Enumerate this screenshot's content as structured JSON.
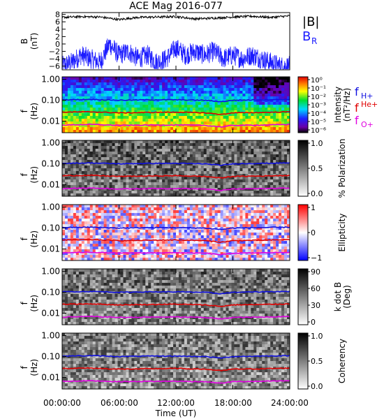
{
  "title": "ACE Mag 2016-077",
  "colors": {
    "bmag": "#000000",
    "br": "#1a1aff",
    "fH": "#1010e0",
    "fHe": "#e00000",
    "fO": "#e000e0"
  },
  "chart_data": {
    "type": "multi-panel spectrogram",
    "x_axis": {
      "label": "Time (UT)",
      "range": [
        "00:00:00",
        "24:00:00"
      ],
      "tick_labels": [
        "00:00:00",
        "06:00:00",
        "12:00:00",
        "18:00:00",
        "24:00:00"
      ],
      "tick_hours": [
        0,
        6,
        12,
        18,
        24
      ]
    },
    "panels": [
      {
        "id": "mag",
        "type": "line",
        "ylabel": "B",
        "yunit": "(nT)",
        "y_tick_labels": [
          "8",
          "6",
          "4",
          "2",
          "0",
          "−2",
          "−4",
          "−6"
        ],
        "ylim": [
          -7,
          8.5
        ],
        "legend": [
          "|B|",
          "B",
          "R"
        ],
        "series": [
          {
            "name": "|B|",
            "hours": [
              0,
              2,
              4,
              6,
              8,
              10,
              12,
              14,
              16,
              18,
              20,
              22,
              24
            ],
            "values": [
              7.2,
              7.4,
              7.3,
              6.6,
              7.2,
              7.3,
              7.4,
              6.8,
              7.0,
              7.3,
              7.5,
              7.2,
              7.6
            ]
          },
          {
            "name": "B_R",
            "hours": [
              0,
              1,
              2,
              3,
              4,
              5,
              6,
              7,
              8,
              9,
              10,
              11,
              12,
              13,
              14,
              15,
              16,
              17,
              18,
              19,
              20,
              21,
              22,
              23,
              24
            ],
            "values": [
              -6,
              -5,
              -3,
              -4,
              -5,
              0,
              -3,
              -2,
              -4,
              -3,
              -5,
              -4,
              -1,
              -3,
              -2,
              -3,
              -2,
              -4,
              -3,
              -4,
              -3,
              -4,
              -5,
              -6,
              -6
            ]
          }
        ]
      },
      {
        "id": "intensity",
        "type": "heatmap",
        "ylabel": "f",
        "yunit": "(Hz)",
        "y_tick_labels": [
          "1.00",
          "0.10",
          "0.01"
        ],
        "colorbar": {
          "label": "Intensity",
          "unit": "(nT²/Hz)",
          "tick_labels": [
            "10⁰",
            "10⁻¹",
            "10⁻²",
            "10⁻³",
            "10⁻⁴",
            "10⁻⁵",
            "10⁻⁶"
          ]
        },
        "legend": [
          {
            "text": "f",
            "sub": "H+",
            "color": "fH"
          },
          {
            "text": "f",
            "sup": "He+",
            "color": "fHe"
          },
          {
            "text": "f",
            "sub": "O+",
            "color": "fO"
          }
        ]
      },
      {
        "id": "polarization",
        "type": "heatmap",
        "ylabel": "f",
        "yunit": "(Hz)",
        "y_tick_labels": [
          "1.00",
          "0.10",
          "0.01"
        ],
        "colorbar": {
          "label": "% Polarization",
          "unit": "",
          "tick_labels": [
            "1.0",
            "0.5",
            "0.0"
          ]
        }
      },
      {
        "id": "ellipticity",
        "type": "heatmap",
        "ylabel": "f",
        "yunit": "(Hz)",
        "y_tick_labels": [
          "1.00",
          "0.10",
          "0.01"
        ],
        "colorbar": {
          "label": "Ellipticity",
          "unit": "",
          "tick_labels": [
            "1",
            "0",
            "−1"
          ]
        }
      },
      {
        "id": "kdotb",
        "type": "heatmap",
        "ylabel": "f",
        "yunit": "(Hz)",
        "y_tick_labels": [
          "1.00",
          "0.10",
          "0.01"
        ],
        "colorbar": {
          "label": "k dot B",
          "unit": "(Deg)",
          "tick_labels": [
            "90",
            "60",
            "30",
            "0"
          ]
        }
      },
      {
        "id": "coherency",
        "type": "heatmap",
        "ylabel": "f",
        "yunit": "(Hz)",
        "y_tick_labels": [
          "1.00",
          "0.10",
          "0.01"
        ],
        "colorbar": {
          "label": "Coherency",
          "unit": "",
          "tick_labels": [
            "1.0",
            "0.5",
            "0.0"
          ]
        }
      }
    ],
    "gyrofrequency_lines": {
      "hours": [
        0,
        3,
        6,
        9,
        12,
        15,
        16.8,
        18,
        21,
        24
      ],
      "fH": [
        0.105,
        0.11,
        0.1,
        0.105,
        0.105,
        0.1,
        0.085,
        0.1,
        0.105,
        0.11
      ],
      "fHe": [
        0.027,
        0.028,
        0.025,
        0.026,
        0.027,
        0.025,
        0.021,
        0.025,
        0.026,
        0.028
      ],
      "fO": [
        0.0065,
        0.007,
        0.0063,
        0.0065,
        0.0066,
        0.0063,
        0.0053,
        0.0063,
        0.0065,
        0.007
      ]
    }
  }
}
